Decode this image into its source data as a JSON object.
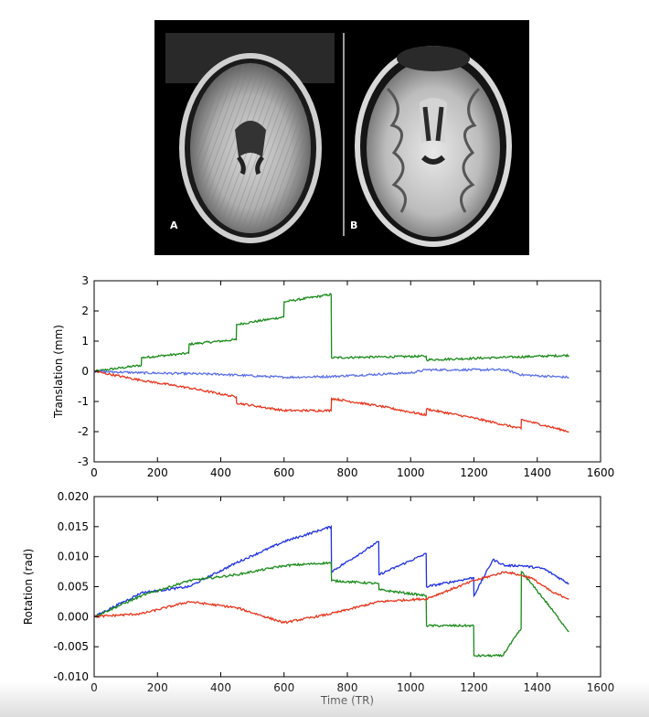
{
  "figure": {
    "panel_a_label": "A",
    "panel_b_label": "B"
  },
  "colors": {
    "blue": "#1f2fe0",
    "green": "#1a8a1a",
    "red": "#e8341c",
    "thin_blue": "#5a6ee8",
    "background": "#000000"
  },
  "chart_data": [
    {
      "type": "line",
      "title": "",
      "xlabel": "",
      "ylabel": "Translation (mm)",
      "xlim": [
        0,
        1600
      ],
      "ylim": [
        -3,
        3
      ],
      "xticks": [
        0,
        200,
        400,
        600,
        800,
        1000,
        1200,
        1400,
        1600
      ],
      "yticks": [
        -3,
        -2,
        -1,
        0,
        1,
        2,
        3
      ],
      "grid": false,
      "series": [
        {
          "color": "#1a8a1a",
          "x": [
            0,
            149,
            150,
            299,
            300,
            449,
            450,
            599,
            600,
            749,
            750,
            1049,
            1050,
            1500
          ],
          "y": [
            0.0,
            0.2,
            0.45,
            0.6,
            0.9,
            1.05,
            1.55,
            1.8,
            2.3,
            2.55,
            0.45,
            0.5,
            0.38,
            0.53
          ]
        },
        {
          "color": "#5a6ee8",
          "x": [
            0,
            150,
            400,
            600,
            750,
            1000,
            1050,
            1300,
            1350,
            1500
          ],
          "y": [
            0.0,
            -0.05,
            -0.1,
            -0.2,
            -0.17,
            -0.05,
            0.05,
            0.05,
            -0.12,
            -0.2
          ]
        },
        {
          "color": "#e8341c",
          "x": [
            0,
            150,
            300,
            449,
            450,
            600,
            749,
            750,
            900,
            1049,
            1050,
            1200,
            1349,
            1350,
            1500
          ],
          "y": [
            0.0,
            -0.3,
            -0.55,
            -0.85,
            -1.05,
            -1.3,
            -1.3,
            -0.9,
            -1.15,
            -1.45,
            -1.25,
            -1.55,
            -1.9,
            -1.6,
            -2.0
          ]
        }
      ]
    },
    {
      "type": "line",
      "title": "",
      "xlabel": "Time (TR)",
      "ylabel": "Rotation (rad)",
      "xlim": [
        0,
        1600
      ],
      "ylim": [
        -0.01,
        0.02
      ],
      "xticks": [
        0,
        200,
        400,
        600,
        800,
        1000,
        1200,
        1400,
        1600
      ],
      "yticks": [
        -0.01,
        -0.005,
        0.0,
        0.005,
        0.01,
        0.015,
        0.02
      ],
      "ytick_labels": [
        "-0.010",
        "-0.005",
        "0.000",
        "0.005",
        "0.010",
        "0.015",
        "0.020"
      ],
      "grid": false,
      "series": [
        {
          "color": "#1f2fe0",
          "x": [
            0,
            150,
            300,
            450,
            600,
            749,
            750,
            899,
            900,
            1049,
            1050,
            1199,
            1200,
            1260,
            1300,
            1350,
            1420,
            1500
          ],
          "y": [
            0.0,
            0.004,
            0.005,
            0.009,
            0.0125,
            0.015,
            0.0075,
            0.0125,
            0.007,
            0.0105,
            0.005,
            0.0065,
            0.0035,
            0.0095,
            0.0085,
            0.0085,
            0.008,
            0.0055
          ]
        },
        {
          "color": "#1a8a1a",
          "x": [
            0,
            150,
            300,
            450,
            600,
            749,
            750,
            899,
            900,
            1049,
            1050,
            1199,
            1200,
            1290,
            1349,
            1350,
            1420,
            1500
          ],
          "y": [
            0.0,
            0.0035,
            0.006,
            0.007,
            0.0085,
            0.009,
            0.006,
            0.0055,
            0.0045,
            0.0035,
            -0.0015,
            -0.0015,
            -0.0065,
            -0.0065,
            -0.002,
            0.0075,
            0.003,
            -0.0025
          ]
        },
        {
          "color": "#e8341c",
          "x": [
            0,
            150,
            300,
            450,
            600,
            750,
            900,
            1050,
            1200,
            1300,
            1380,
            1450,
            1500
          ],
          "y": [
            0.0,
            0.0005,
            0.0025,
            0.0015,
            -0.001,
            0.0005,
            0.0025,
            0.003,
            0.006,
            0.0075,
            0.0065,
            0.004,
            0.003
          ]
        }
      ]
    }
  ]
}
